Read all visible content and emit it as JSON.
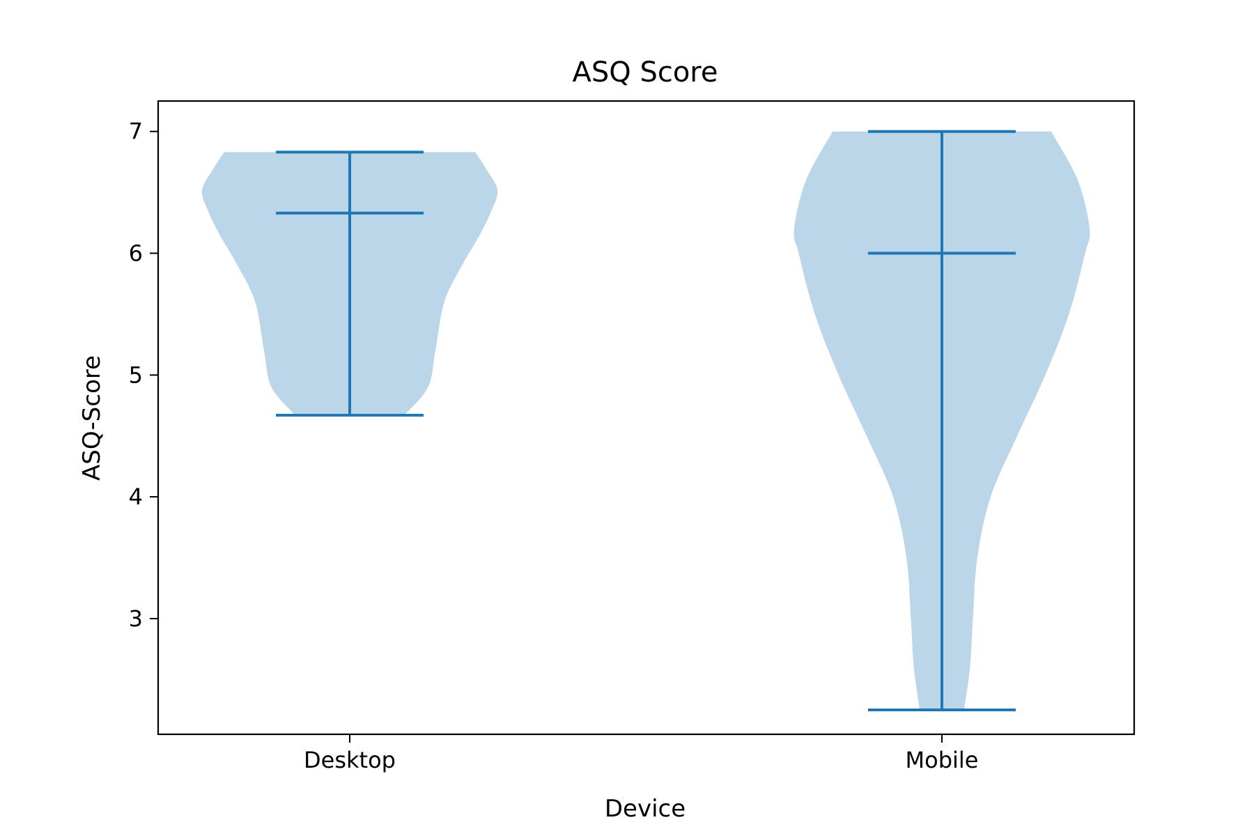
{
  "chart_data": {
    "type": "violin",
    "title": "ASQ Score",
    "xlabel": "Device",
    "ylabel": "ASQ-Score",
    "categories": [
      "Desktop",
      "Mobile"
    ],
    "ylim": [
      2.05,
      7.25
    ],
    "yticks": [
      3,
      4,
      5,
      6,
      7
    ],
    "ytick_labels": [
      "3",
      "4",
      "5",
      "6",
      "7"
    ],
    "grid": false,
    "colors": {
      "body": "#bad6e8",
      "lines": "#1f77b4",
      "axes": "#000000"
    },
    "series": [
      {
        "category": "Desktop",
        "min": 4.67,
        "median": 6.33,
        "max": 6.83,
        "density_profile": [
          [
            4.67,
            0.37
          ],
          [
            4.9,
            0.53
          ],
          [
            5.2,
            0.58
          ],
          [
            5.6,
            0.64
          ],
          [
            5.9,
            0.76
          ],
          [
            6.15,
            0.88
          ],
          [
            6.35,
            0.96
          ],
          [
            6.52,
            1.0
          ],
          [
            6.7,
            0.92
          ],
          [
            6.83,
            0.85
          ]
        ]
      },
      {
        "category": "Mobile",
        "min": 2.25,
        "median": 6.0,
        "max": 7.0,
        "density_profile": [
          [
            2.25,
            0.15
          ],
          [
            2.6,
            0.19
          ],
          [
            3.0,
            0.21
          ],
          [
            3.5,
            0.24
          ],
          [
            4.0,
            0.33
          ],
          [
            4.5,
            0.51
          ],
          [
            5.0,
            0.7
          ],
          [
            5.5,
            0.86
          ],
          [
            6.0,
            0.97
          ],
          [
            6.2,
            1.0
          ],
          [
            6.6,
            0.92
          ],
          [
            7.0,
            0.74
          ]
        ]
      }
    ]
  }
}
